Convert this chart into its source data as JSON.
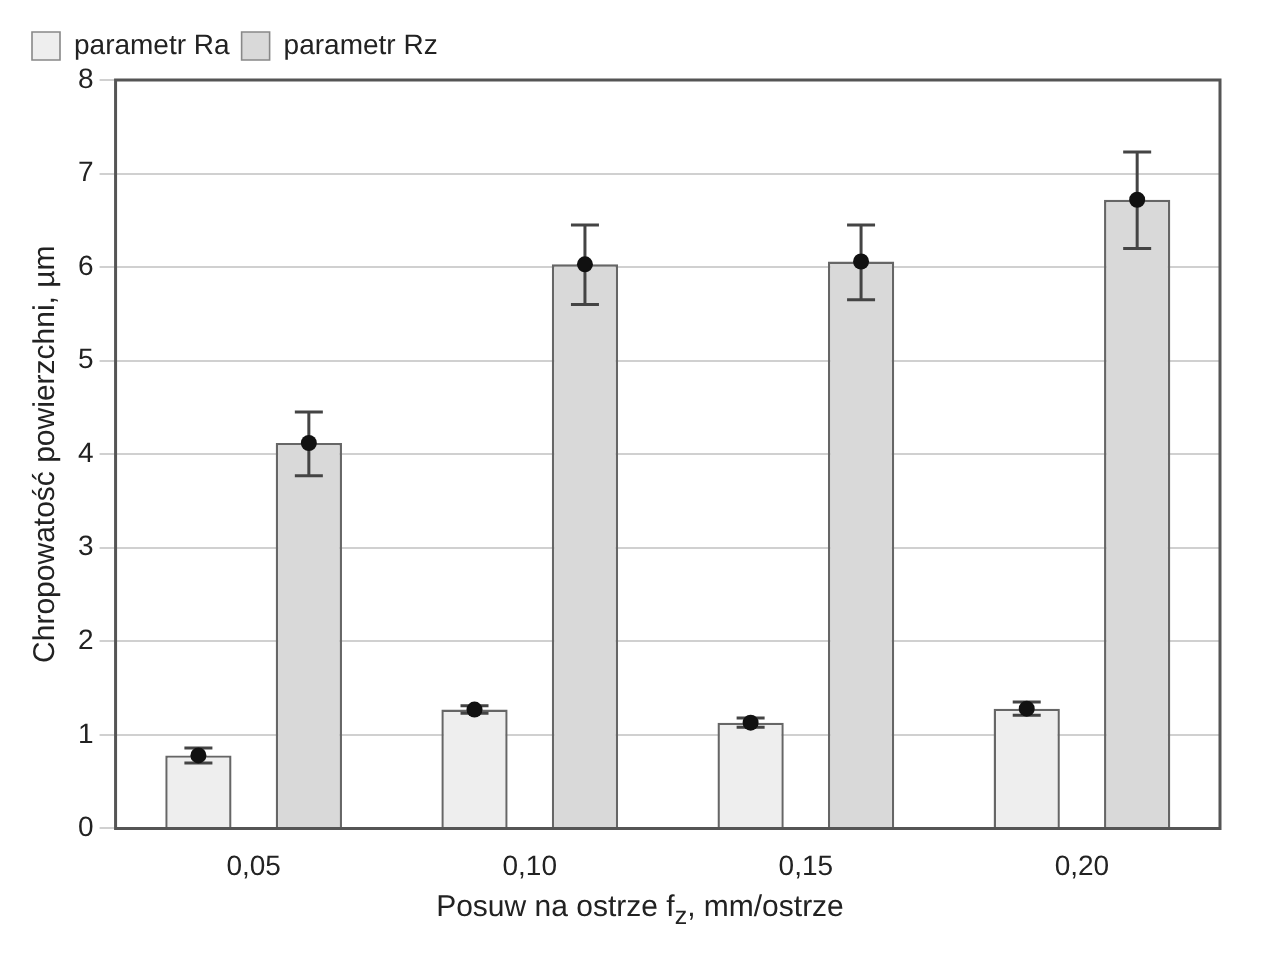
{
  "chart_data": {
    "type": "bar",
    "xlabel": "Posuw na ostrze f$_{z}$, mm/ostrze",
    "ylabel": "Chropowatość powierzchni, µm",
    "categories": [
      "0,05",
      "0,10",
      "0,15",
      "0,20"
    ],
    "series": [
      {
        "name": "parametr Ra",
        "color": "#eeeeee",
        "values": [
          0.78,
          1.27,
          1.13,
          1.28
        ],
        "errors": [
          0.08,
          0.04,
          0.05,
          0.07
        ]
      },
      {
        "name": "parametr Rz",
        "color": "#d9d9d9",
        "values": [
          4.12,
          6.03,
          6.06,
          6.72
        ],
        "errors": [
          [
            3.77,
            4.45
          ],
          [
            5.6,
            6.45
          ],
          [
            5.65,
            6.45
          ],
          [
            6.2,
            7.23
          ]
        ]
      },
      {
        "type": "scatter",
        "color": "#111111",
        "x": [
          "0,05",
          "0,10",
          "0,15",
          "0,20"
        ],
        "values": [
          0.78,
          1.27,
          1.13,
          1.28
        ]
      },
      {
        "type": "scatter",
        "color": "#111111",
        "x": [
          "0,05",
          "0,10",
          "0,15",
          "0,20"
        ],
        "values": [
          4.12,
          6.03,
          6.06,
          6.72
        ]
      }
    ],
    "ylim": [
      0,
      8
    ],
    "yticks": [
      0,
      1,
      2,
      3,
      4,
      5,
      6,
      7,
      8
    ],
    "grid": "y",
    "legend": "top left",
    "marker": "circle"
  }
}
